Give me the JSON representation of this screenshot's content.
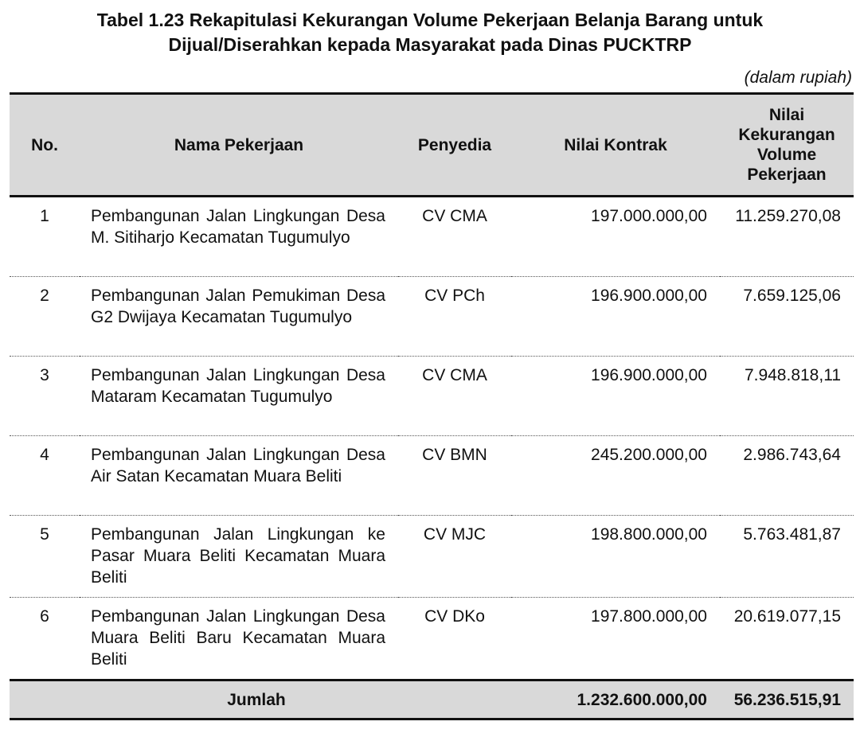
{
  "title_line1": "Tabel 1.23 Rekapitulasi Kekurangan Volume Pekerjaan Belanja Barang untuk",
  "title_line2": "Dijual/Diserahkan kepada Masyarakat pada Dinas PUCKTRP",
  "unit": "(dalam rupiah)",
  "headers": {
    "no": "No.",
    "name": "Nama Pekerjaan",
    "provider": "Penyedia",
    "contract": "Nilai Kontrak",
    "shortfall": "Nilai Kekurangan Volume Pekerjaan"
  },
  "rows": [
    {
      "no": "1",
      "name": "Pembangunan Jalan Lingkungan Desa M. Sitiharjo Kecamatan Tugumulyo",
      "provider": "CV CMA",
      "contract": "197.000.000,00",
      "shortfall": "11.259.270,08"
    },
    {
      "no": "2",
      "name": "Pembangunan Jalan Pemukiman Desa G2 Dwijaya Kecamatan Tugumulyo",
      "provider": "CV PCh",
      "contract": "196.900.000,00",
      "shortfall": "7.659.125,06"
    },
    {
      "no": "3",
      "name": "Pembangunan Jalan Lingkungan Desa Mataram Kecamatan Tugumulyo",
      "provider": "CV CMA",
      "contract": "196.900.000,00",
      "shortfall": "7.948.818,11"
    },
    {
      "no": "4",
      "name": "Pembangunan Jalan Lingkungan Desa Air Satan Kecamatan Muara Beliti",
      "provider": "CV BMN",
      "contract": "245.200.000,00",
      "shortfall": "2.986.743,64"
    },
    {
      "no": "5",
      "name": "Pembangunan Jalan Lingkungan ke Pasar Muara Beliti Kecamatan Muara Beliti",
      "provider": "CV MJC",
      "contract": "198.800.000,00",
      "shortfall": "5.763.481,87"
    },
    {
      "no": "6",
      "name": "Pembangunan Jalan Lingkungan Desa Muara Beliti Baru Kecamatan Muara Beliti",
      "provider": "CV DKo",
      "contract": "197.800.000,00",
      "shortfall": "20.619.077,15"
    }
  ],
  "total": {
    "label": "Jumlah",
    "contract": "1.232.600.000,00",
    "shortfall": "56.236.515,91"
  }
}
